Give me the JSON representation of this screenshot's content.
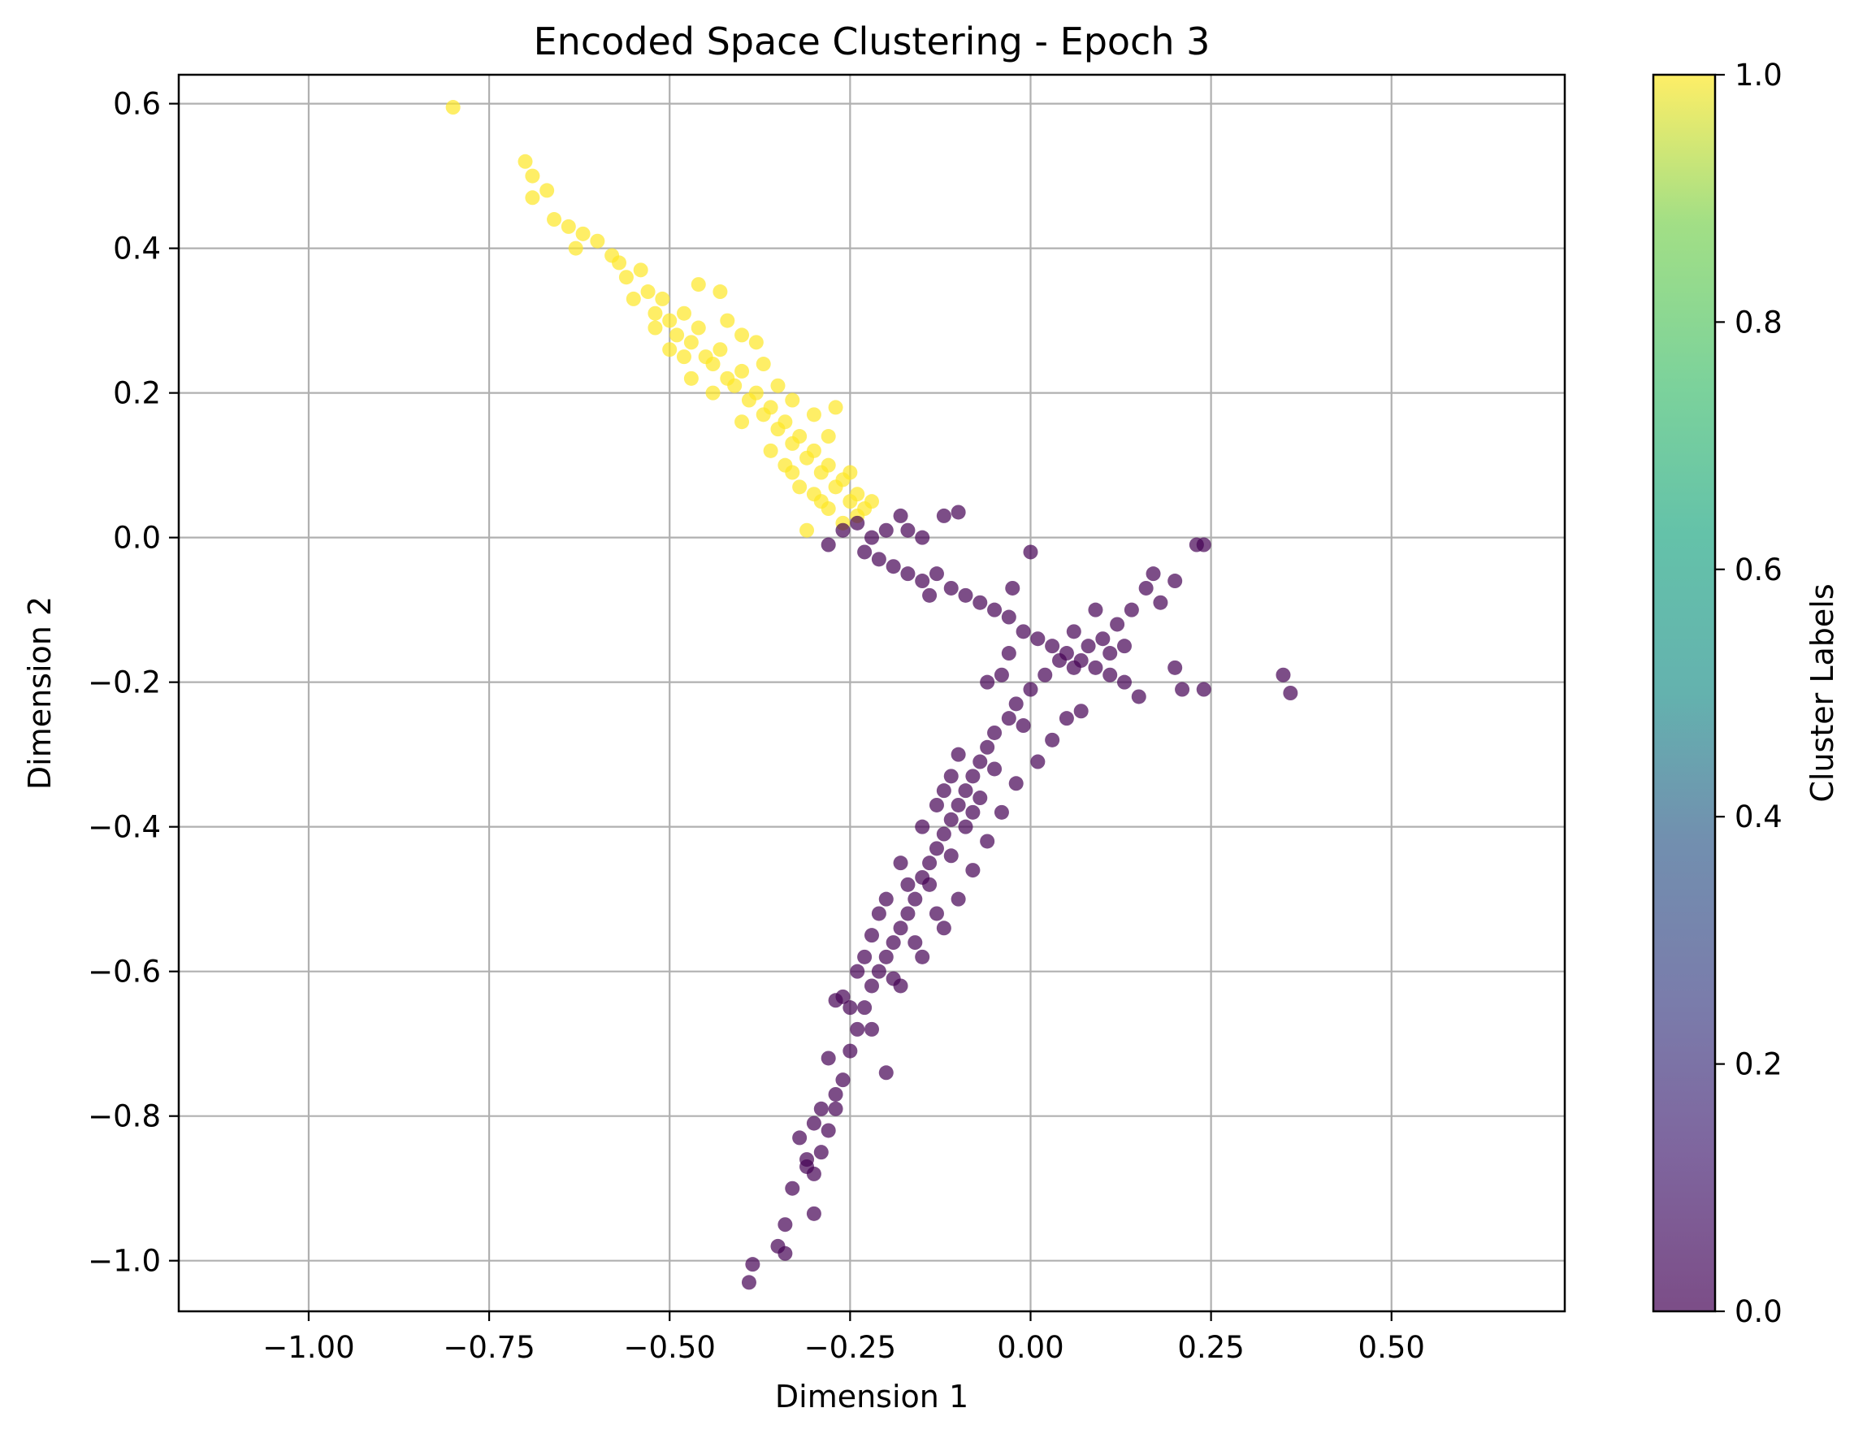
{
  "chart_data": {
    "type": "scatter",
    "title": "Encoded Space Clustering - Epoch 3",
    "xlabel": "Dimension 1",
    "ylabel": "Dimension 2",
    "xlim": [
      -1.18,
      0.74
    ],
    "ylim": [
      -1.07,
      0.64
    ],
    "xticks": [
      -1.0,
      -0.75,
      -0.5,
      -0.25,
      0.0,
      0.25,
      0.5
    ],
    "xtick_labels": [
      "−1.00",
      "−0.75",
      "−0.50",
      "−0.25",
      "0.00",
      "0.25",
      "0.50"
    ],
    "yticks": [
      -1.0,
      -0.8,
      -0.6,
      -0.4,
      -0.2,
      0.0,
      0.2,
      0.4,
      0.6
    ],
    "ytick_labels": [
      "−1.0",
      "−0.8",
      "−0.6",
      "−0.4",
      "−0.2",
      "0.0",
      "0.2",
      "0.4",
      "0.6"
    ],
    "grid": true,
    "colorbar": {
      "label": "Cluster Labels",
      "range": [
        0.0,
        1.0
      ],
      "ticks": [
        0.0,
        0.2,
        0.4,
        0.6,
        0.8,
        1.0
      ],
      "tick_labels": [
        "0.0",
        "0.2",
        "0.4",
        "0.6",
        "0.8",
        "1.0"
      ],
      "colormap": "viridis",
      "alpha": 0.7
    },
    "colors": {
      "cluster_0": "#440154",
      "cluster_1": "#fde725"
    },
    "series": [
      {
        "cluster": 1,
        "points": [
          [
            -0.8,
            0.595
          ],
          [
            -0.7,
            0.52
          ],
          [
            -0.69,
            0.5
          ],
          [
            -0.69,
            0.47
          ],
          [
            -0.67,
            0.48
          ],
          [
            -0.66,
            0.44
          ],
          [
            -0.64,
            0.43
          ],
          [
            -0.63,
            0.4
          ],
          [
            -0.62,
            0.42
          ],
          [
            -0.6,
            0.41
          ],
          [
            -0.58,
            0.39
          ],
          [
            -0.57,
            0.38
          ],
          [
            -0.56,
            0.36
          ],
          [
            -0.54,
            0.37
          ],
          [
            -0.55,
            0.33
          ],
          [
            -0.53,
            0.34
          ],
          [
            -0.52,
            0.31
          ],
          [
            -0.51,
            0.33
          ],
          [
            -0.52,
            0.29
          ],
          [
            -0.5,
            0.3
          ],
          [
            -0.49,
            0.28
          ],
          [
            -0.48,
            0.31
          ],
          [
            -0.47,
            0.27
          ],
          [
            -0.46,
            0.29
          ],
          [
            -0.48,
            0.25
          ],
          [
            -0.45,
            0.25
          ],
          [
            -0.44,
            0.24
          ],
          [
            -0.43,
            0.26
          ],
          [
            -0.42,
            0.22
          ],
          [
            -0.41,
            0.21
          ],
          [
            -0.4,
            0.23
          ],
          [
            -0.39,
            0.19
          ],
          [
            -0.38,
            0.2
          ],
          [
            -0.37,
            0.17
          ],
          [
            -0.36,
            0.18
          ],
          [
            -0.35,
            0.15
          ],
          [
            -0.34,
            0.16
          ],
          [
            -0.33,
            0.13
          ],
          [
            -0.32,
            0.14
          ],
          [
            -0.31,
            0.11
          ],
          [
            -0.3,
            0.12
          ],
          [
            -0.29,
            0.09
          ],
          [
            -0.28,
            0.1
          ],
          [
            -0.27,
            0.07
          ],
          [
            -0.26,
            0.08
          ],
          [
            -0.25,
            0.05
          ],
          [
            -0.24,
            0.06
          ],
          [
            -0.23,
            0.04
          ],
          [
            -0.22,
            0.05
          ],
          [
            -0.24,
            0.03
          ],
          [
            -0.26,
            0.02
          ],
          [
            -0.28,
            0.04
          ],
          [
            -0.3,
            0.06
          ],
          [
            -0.33,
            0.09
          ],
          [
            -0.36,
            0.12
          ],
          [
            -0.4,
            0.16
          ],
          [
            -0.44,
            0.2
          ],
          [
            -0.47,
            0.22
          ],
          [
            -0.5,
            0.26
          ],
          [
            -0.35,
            0.21
          ],
          [
            -0.33,
            0.19
          ],
          [
            -0.3,
            0.17
          ],
          [
            -0.28,
            0.14
          ],
          [
            -0.27,
            0.18
          ],
          [
            -0.31,
            0.01
          ],
          [
            -0.43,
            0.34
          ],
          [
            -0.46,
            0.35
          ],
          [
            -0.38,
            0.27
          ],
          [
            -0.42,
            0.3
          ],
          [
            -0.4,
            0.28
          ],
          [
            -0.37,
            0.24
          ],
          [
            -0.34,
            0.1
          ],
          [
            -0.32,
            0.07
          ],
          [
            -0.29,
            0.05
          ],
          [
            -0.25,
            0.09
          ]
        ]
      },
      {
        "cluster": 0,
        "points": [
          [
            -0.26,
            0.01
          ],
          [
            -0.24,
            0.02
          ],
          [
            -0.22,
            0.0
          ],
          [
            -0.2,
            0.01
          ],
          [
            -0.18,
            0.03
          ],
          [
            -0.17,
            0.01
          ],
          [
            -0.15,
            0.0
          ],
          [
            -0.12,
            0.03
          ],
          [
            -0.1,
            0.035
          ],
          [
            -0.28,
            -0.01
          ],
          [
            -0.23,
            -0.02
          ],
          [
            -0.21,
            -0.03
          ],
          [
            -0.19,
            -0.04
          ],
          [
            -0.17,
            -0.05
          ],
          [
            -0.15,
            -0.06
          ],
          [
            -0.13,
            -0.05
          ],
          [
            -0.11,
            -0.07
          ],
          [
            -0.09,
            -0.08
          ],
          [
            -0.07,
            -0.09
          ],
          [
            -0.05,
            -0.1
          ],
          [
            -0.03,
            -0.11
          ],
          [
            -0.01,
            -0.13
          ],
          [
            0.01,
            -0.14
          ],
          [
            0.03,
            -0.15
          ],
          [
            0.05,
            -0.16
          ],
          [
            0.07,
            -0.17
          ],
          [
            0.09,
            -0.18
          ],
          [
            0.11,
            -0.19
          ],
          [
            0.13,
            -0.2
          ],
          [
            0.15,
            -0.22
          ],
          [
            0.2,
            -0.18
          ],
          [
            0.21,
            -0.21
          ],
          [
            0.24,
            -0.21
          ],
          [
            0.24,
            -0.01
          ],
          [
            0.23,
            -0.01
          ],
          [
            0.2,
            -0.06
          ],
          [
            0.18,
            -0.09
          ],
          [
            0.16,
            -0.07
          ],
          [
            0.14,
            -0.1
          ],
          [
            0.12,
            -0.12
          ],
          [
            0.1,
            -0.14
          ],
          [
            0.08,
            -0.15
          ],
          [
            0.06,
            -0.13
          ],
          [
            0.04,
            -0.17
          ],
          [
            0.02,
            -0.19
          ],
          [
            0.0,
            -0.21
          ],
          [
            -0.02,
            -0.23
          ],
          [
            -0.03,
            -0.25
          ],
          [
            -0.05,
            -0.27
          ],
          [
            -0.06,
            -0.29
          ],
          [
            -0.07,
            -0.31
          ],
          [
            -0.08,
            -0.33
          ],
          [
            -0.09,
            -0.35
          ],
          [
            -0.1,
            -0.37
          ],
          [
            -0.11,
            -0.39
          ],
          [
            -0.12,
            -0.41
          ],
          [
            -0.13,
            -0.43
          ],
          [
            -0.14,
            -0.45
          ],
          [
            -0.15,
            -0.47
          ],
          [
            -0.16,
            -0.5
          ],
          [
            -0.17,
            -0.52
          ],
          [
            -0.18,
            -0.54
          ],
          [
            -0.19,
            -0.56
          ],
          [
            -0.2,
            -0.58
          ],
          [
            -0.21,
            -0.6
          ],
          [
            -0.22,
            -0.62
          ],
          [
            -0.23,
            -0.65
          ],
          [
            -0.24,
            -0.68
          ],
          [
            -0.25,
            -0.71
          ],
          [
            -0.26,
            -0.75
          ],
          [
            -0.27,
            -0.79
          ],
          [
            -0.28,
            -0.82
          ],
          [
            -0.29,
            -0.85
          ],
          [
            -0.3,
            -0.88
          ],
          [
            -0.31,
            -0.87
          ],
          [
            -0.32,
            -0.83
          ],
          [
            -0.33,
            -0.9
          ],
          [
            -0.34,
            -0.95
          ],
          [
            -0.35,
            -0.98
          ],
          [
            -0.34,
            -0.99
          ],
          [
            -0.39,
            -1.03
          ],
          [
            -0.385,
            -1.005
          ],
          [
            -0.3,
            -0.935
          ],
          [
            -0.26,
            -0.635
          ],
          [
            -0.27,
            -0.64
          ],
          [
            -0.2,
            -0.74
          ],
          [
            -0.18,
            -0.62
          ],
          [
            -0.15,
            -0.58
          ],
          [
            -0.12,
            -0.54
          ],
          [
            -0.1,
            -0.5
          ],
          [
            -0.08,
            -0.46
          ],
          [
            -0.06,
            -0.42
          ],
          [
            -0.04,
            -0.38
          ],
          [
            -0.02,
            -0.34
          ],
          [
            0.01,
            -0.31
          ],
          [
            0.03,
            -0.28
          ],
          [
            0.05,
            -0.25
          ],
          [
            0.07,
            -0.24
          ],
          [
            -0.04,
            -0.19
          ],
          [
            -0.03,
            -0.16
          ],
          [
            0.35,
            -0.19
          ],
          [
            0.36,
            -0.215
          ],
          [
            0.17,
            -0.05
          ],
          [
            0.0,
            -0.02
          ],
          [
            -0.14,
            -0.08
          ],
          [
            -0.06,
            -0.2
          ],
          [
            -0.1,
            -0.3
          ],
          [
            -0.12,
            -0.35
          ],
          [
            -0.15,
            -0.4
          ],
          [
            -0.18,
            -0.45
          ],
          [
            -0.2,
            -0.5
          ],
          [
            -0.22,
            -0.55
          ],
          [
            -0.14,
            -0.48
          ],
          [
            -0.09,
            -0.4
          ],
          [
            -0.07,
            -0.36
          ],
          [
            -0.11,
            -0.44
          ],
          [
            -0.13,
            -0.52
          ],
          [
            -0.16,
            -0.56
          ],
          [
            -0.19,
            -0.61
          ],
          [
            -0.23,
            -0.58
          ],
          [
            0.09,
            -0.1
          ],
          [
            0.11,
            -0.16
          ],
          [
            0.13,
            -0.15
          ],
          [
            0.06,
            -0.18
          ],
          [
            -0.01,
            -0.26
          ],
          [
            -0.05,
            -0.32
          ],
          [
            -0.08,
            -0.38
          ],
          [
            -0.11,
            -0.33
          ],
          [
            -0.13,
            -0.37
          ],
          [
            -0.17,
            -0.48
          ],
          [
            -0.21,
            -0.52
          ],
          [
            -0.24,
            -0.6
          ],
          [
            -0.25,
            -0.65
          ],
          [
            -0.22,
            -0.68
          ],
          [
            -0.28,
            -0.72
          ],
          [
            -0.29,
            -0.79
          ],
          [
            -0.3,
            -0.81
          ],
          [
            -0.31,
            -0.86
          ],
          [
            -0.27,
            -0.77
          ],
          [
            -0.025,
            -0.07
          ]
        ]
      }
    ]
  }
}
